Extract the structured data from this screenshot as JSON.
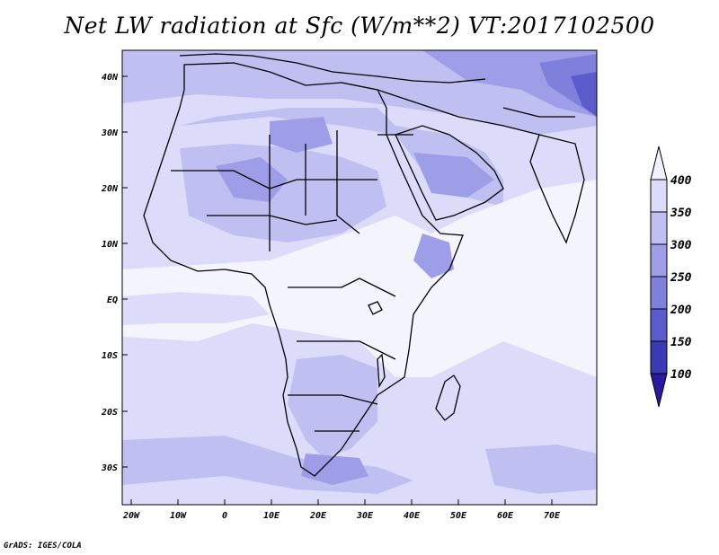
{
  "title": "Net LW radiation at Sfc (W/m**2) VT:2017102500",
  "credit": "GrADS: IGES/COLA",
  "map": {
    "lat_labels": [
      "40N",
      "30N",
      "20N",
      "10N",
      "EQ",
      "10S",
      "20S",
      "30S"
    ],
    "lon_labels": [
      "20W",
      "10W",
      "0",
      "10E",
      "20E",
      "30E",
      "40E",
      "50E",
      "60E",
      "70E"
    ],
    "lon_range": [
      -22,
      80
    ],
    "lat_range": [
      -37,
      45
    ]
  },
  "colorbar": {
    "levels": [
      "400",
      "350",
      "300",
      "250",
      "200",
      "150",
      "100"
    ],
    "colors": [
      "#f0f0ff",
      "#dcdcfa",
      "#bfbff2",
      "#9e9ee8",
      "#7f7fdc",
      "#5b5bcc",
      "#3a3ab4",
      "#2a1aa0"
    ]
  }
}
